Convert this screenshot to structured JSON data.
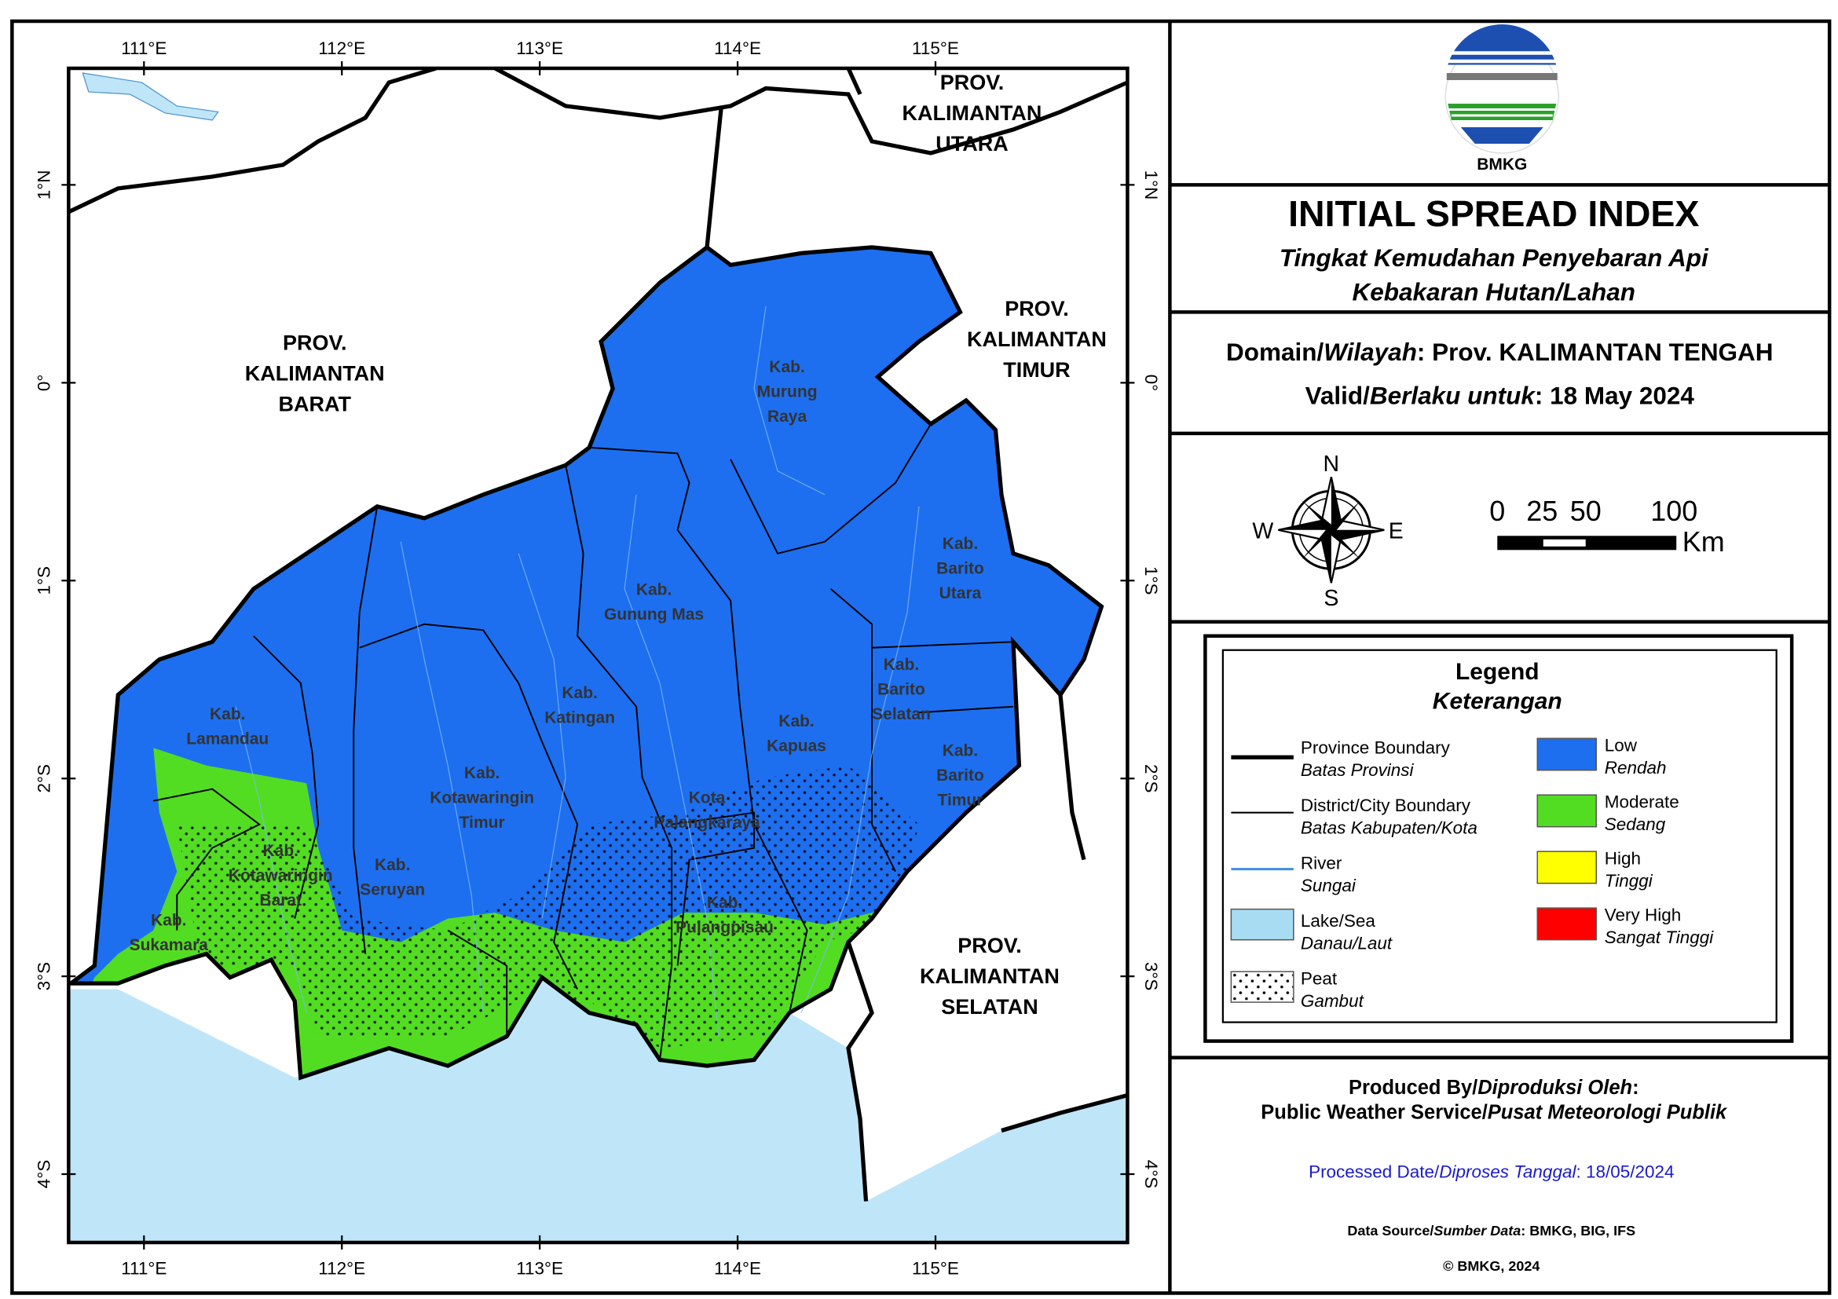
{
  "map": {
    "graticule": {
      "longitudes": [
        "111°E",
        "112°E",
        "113°E",
        "114°E",
        "115°E"
      ],
      "latitudes": [
        "1°N",
        "0°",
        "1°S",
        "2°S",
        "3°S",
        "4°S"
      ]
    },
    "province_labels": [
      {
        "lines": [
          "PROV.",
          "KALIMANTAN",
          "BARAT"
        ]
      },
      {
        "lines": [
          "PROV.",
          "KALIMANTAN",
          "UTARA"
        ]
      },
      {
        "lines": [
          "PROV.",
          "KALIMANTAN",
          "TIMUR"
        ]
      },
      {
        "lines": [
          "PROV.",
          "KALIMANTAN",
          "SELATAN"
        ]
      }
    ],
    "district_labels": [
      {
        "lines": [
          "Kab.",
          "Murung",
          "Raya"
        ]
      },
      {
        "lines": [
          "Kab.",
          "Barito",
          "Utara"
        ]
      },
      {
        "lines": [
          "Kab.",
          "Gunung Mas"
        ]
      },
      {
        "lines": [
          "Kab.",
          "Katingan"
        ]
      },
      {
        "lines": [
          "Kab.",
          "Lamandau"
        ]
      },
      {
        "lines": [
          "Kab.",
          "Kapuas"
        ]
      },
      {
        "lines": [
          "Kab.",
          "Barito",
          "Selatan"
        ]
      },
      {
        "lines": [
          "Kab.",
          "Barito",
          "Timur"
        ]
      },
      {
        "lines": [
          "Kab.",
          "Kotawaringin",
          "Timur"
        ]
      },
      {
        "lines": [
          "Kota",
          "Palangkaraya"
        ]
      },
      {
        "lines": [
          "Kab.",
          "Kotawaringin",
          "Barat"
        ]
      },
      {
        "lines": [
          "Kab.",
          "Seruyan"
        ]
      },
      {
        "lines": [
          "Kab.",
          "Sukamara"
        ]
      },
      {
        "lines": [
          "Kab.",
          "Pulangpisau"
        ]
      }
    ]
  },
  "header": {
    "logo_text": "BMKG",
    "title": "INITIAL SPREAD INDEX",
    "subtitle_lines": [
      "Tingkat Kemudahan Penyebaran Api",
      "Kebakaran Hutan/Lahan"
    ]
  },
  "info": {
    "domain": {
      "label": "Domain/",
      "label_local": "Wilayah",
      "value": ": Prov. KALIMANTAN TENGAH"
    },
    "valid": {
      "label": "Valid/",
      "label_local": "Berlaku untuk",
      "value": ": 18 May 2024"
    }
  },
  "compass": {
    "n": "N",
    "s": "S",
    "e": "E",
    "w": "W"
  },
  "scale_bar": {
    "labels": [
      "0",
      "25",
      "50",
      "100"
    ],
    "unit": "Km"
  },
  "legend": {
    "title": "Legend",
    "subtitle": "Keterangan",
    "features": [
      {
        "label": "Province Boundary",
        "label_local": "Batas Provinsi"
      },
      {
        "label": "District/City Boundary",
        "label_local": "Batas Kabupaten/Kota"
      },
      {
        "label": "River",
        "label_local": "Sungai"
      },
      {
        "label": "Lake/Sea",
        "label_local": "Danau/Laut"
      },
      {
        "label": "Peat",
        "label_local": "Gambut"
      }
    ],
    "classes": [
      {
        "label": "Low",
        "label_local": "Rendah",
        "color": "#1d6ff0"
      },
      {
        "label": "Moderate",
        "label_local": "Sedang",
        "color": "#52dd22"
      },
      {
        "label": "High",
        "label_local": "Tinggi",
        "color": "#ffff00"
      },
      {
        "label": "Very High",
        "label_local": "Sangat Tinggi",
        "color": "#ff0000"
      }
    ]
  },
  "credits": {
    "produced_label": "Produced By/",
    "produced_label_local": "Diproduksi Oleh",
    "produced_colon": ":",
    "producer": "Public Weather Service/",
    "producer_local": "Pusat Meteorologi Publik",
    "processed_label": "Processed Date/",
    "processed_label_local": "Diproses Tanggal",
    "processed_value": ": 18/05/2024",
    "source_label": "Data Source/",
    "source_label_local": "Sumber Data",
    "source_value": ": BMKG, BIG, IFS",
    "copyright": "© BMKG, 2024"
  }
}
